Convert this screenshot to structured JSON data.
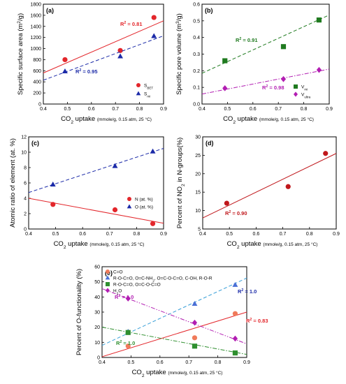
{
  "chart_data": [
    {
      "type": "scatter",
      "panel_label": "(a)",
      "xlabel": "CO2 uptake (mmole/g, 0.15 atm, 25 °C)",
      "ylabel": "Specific surface area (m2/g)",
      "xlim": [
        0.4,
        0.9
      ],
      "ylim": [
        0,
        1800
      ],
      "xticks": [
        "0.4",
        "0.5",
        "0.6",
        "0.7",
        "0.8",
        "0.9"
      ],
      "yticks": [
        "0",
        "200",
        "400",
        "600",
        "800",
        "1000",
        "1200",
        "1400",
        "1600",
        "1800"
      ],
      "legend_position": "bottom-right",
      "series": [
        {
          "name": "SBET",
          "marker": "circle",
          "color": "#e3262b",
          "x": [
            0.49,
            0.72,
            0.86
          ],
          "y": [
            800,
            965,
            1560
          ],
          "fit": {
            "x": [
              0.4,
              0.9
            ],
            "y": [
              560,
              1500
            ],
            "style": "solid"
          },
          "r2_label": "R2 = 0.81"
        },
        {
          "name": "Smi",
          "marker": "triangle",
          "color": "#1b2aa8",
          "x": [
            0.49,
            0.72,
            0.86
          ],
          "y": [
            590,
            860,
            1225
          ],
          "fit": {
            "x": [
              0.4,
              0.9
            ],
            "y": [
              430,
              1230
            ],
            "style": "dashed"
          },
          "r2_label": "R2 = 0.95"
        }
      ]
    },
    {
      "type": "scatter",
      "panel_label": "(b)",
      "xlabel": "CO2 uptake (mmole/g, 0.15 atm, 25 °C)",
      "ylabel": "Specific pore volume (m3/g)",
      "xlim": [
        0.4,
        0.9
      ],
      "ylim": [
        0.0,
        0.6
      ],
      "xticks": [
        "0.4",
        "0.5",
        "0.6",
        "0.7",
        "0.8",
        "0.9"
      ],
      "yticks": [
        "0.0",
        "0.1",
        "0.2",
        "0.3",
        "0.4",
        "0.5",
        "0.6"
      ],
      "legend_position": "bottom-right",
      "series": [
        {
          "name": "Vmi",
          "marker": "square",
          "color": "#1f7a1f",
          "x": [
            0.49,
            0.72,
            0.86
          ],
          "y": [
            0.26,
            0.345,
            0.505
          ],
          "fit": {
            "x": [
              0.4,
              0.9
            ],
            "y": [
              0.185,
              0.535
            ],
            "style": "dashed"
          },
          "r2_label": "R2 = 0.91"
        },
        {
          "name": "Vultra",
          "marker": "diamond",
          "color": "#b21db2",
          "x": [
            0.49,
            0.72,
            0.86
          ],
          "y": [
            0.095,
            0.15,
            0.205
          ],
          "fit": {
            "x": [
              0.4,
              0.9
            ],
            "y": [
              0.06,
              0.21
            ],
            "style": "dashdot"
          },
          "r2_label": "R2 = 0.98"
        }
      ]
    },
    {
      "type": "scatter",
      "panel_label": "(c)",
      "xlabel": "CO2 uptake (mmole/g, 0.15 atm, 25 °C)",
      "ylabel": "Atomic ratio of element (at. %)",
      "xlim": [
        0.4,
        0.9
      ],
      "ylim": [
        0,
        12
      ],
      "xticks": [
        "0.4",
        "0.5",
        "0.6",
        "0.7",
        "0.8",
        "0.9"
      ],
      "yticks": [
        "0",
        "2",
        "4",
        "6",
        "8",
        "10",
        "12"
      ],
      "legend_position": "right",
      "series": [
        {
          "name": "N (at. %)",
          "marker": "circle",
          "color": "#e3262b",
          "x": [
            0.49,
            0.72,
            0.86
          ],
          "y": [
            3.2,
            2.5,
            0.7
          ],
          "fit": {
            "x": [
              0.4,
              0.9
            ],
            "y": [
              4.0,
              0.75
            ],
            "style": "solid"
          }
        },
        {
          "name": "O (at. %)",
          "marker": "triangle",
          "color": "#1b2aa8",
          "x": [
            0.49,
            0.72,
            0.86
          ],
          "y": [
            5.8,
            8.2,
            10.1
          ],
          "fit": {
            "x": [
              0.4,
              0.9
            ],
            "y": [
              4.75,
              10.5
            ],
            "style": "dashed"
          }
        }
      ]
    },
    {
      "type": "scatter",
      "panel_label": "(d)",
      "xlabel": "CO2 uptake (mmole/g, 0.15 atm, 25 °C)",
      "ylabel": "Percent of NO2 in N-groups(%)",
      "xlim": [
        0.4,
        0.9
      ],
      "ylim": [
        5,
        30
      ],
      "xticks": [
        "0.4",
        "0.5",
        "0.6",
        "0.7",
        "0.8",
        "0.9"
      ],
      "yticks": [
        "5",
        "10",
        "15",
        "20",
        "25",
        "30"
      ],
      "series": [
        {
          "name": "",
          "marker": "circle",
          "color": "#c0181c",
          "x": [
            0.49,
            0.72,
            0.86
          ],
          "y": [
            12.0,
            16.5,
            25.5
          ],
          "fit": {
            "x": [
              0.4,
              0.9
            ],
            "y": [
              8.0,
              25.5
            ],
            "style": "solid"
          },
          "r2_label": "R2 = 0.90"
        }
      ]
    },
    {
      "type": "scatter",
      "panel_label": "(e)",
      "xlabel": "CO2 uptake (mmole/g, 0.15 atm, 25 °C)",
      "ylabel": "Percent of O-functionality (%)",
      "xlim": [
        0.4,
        0.9
      ],
      "ylim": [
        0,
        60
      ],
      "xticks": [
        "0.4",
        "0.5",
        "0.6",
        "0.7",
        "0.8",
        "0.9"
      ],
      "yticks": [
        "0",
        "10",
        "20",
        "30",
        "40",
        "50",
        "60"
      ],
      "legend_position": "top-left",
      "series": [
        {
          "name": "C=O",
          "marker": "circle",
          "color": "#f07a5a",
          "x": [
            0.49,
            0.72,
            0.86
          ],
          "y": [
            7.5,
            13.0,
            29.0
          ],
          "fit": {
            "x": [
              0.4,
              0.9
            ],
            "y": [
              0.5,
              30.0
            ],
            "style": "solid",
            "color": "#e3262b"
          },
          "r2_label": "R2 = 0.83",
          "r2_color": "#e3262b"
        },
        {
          "name": "R-O-C=O, O=C-NH2, O=C-O-C=O, C-OH, R-O-R",
          "marker": "triangle",
          "color": "#4a6fd6",
          "x": [
            0.49,
            0.72,
            0.86
          ],
          "y": [
            17.0,
            35.5,
            48.0
          ],
          "fit": {
            "x": [
              0.4,
              0.9
            ],
            "y": [
              8.0,
              52.5
            ],
            "style": "dashed",
            "color": "#3aa0d8"
          },
          "r2_label": "R2 = 1.0",
          "r2_color": "#1b2aa8"
        },
        {
          "name": "R-O-C=O, O=C-O-C=O",
          "marker": "square",
          "color": "#2f8f2f",
          "x": [
            0.49,
            0.72,
            0.86
          ],
          "y": [
            16.5,
            7.5,
            3.0
          ],
          "fit": {
            "x": [
              0.4,
              0.9
            ],
            "y": [
              20.0,
              2.0
            ],
            "style": "dashdot",
            "color": "#2f8f2f"
          },
          "r2_label": "R2 = 1.0",
          "r2_color": "#2f8f2f"
        },
        {
          "name": "H2O",
          "marker": "diamond",
          "color": "#b21db2",
          "x": [
            0.49,
            0.72,
            0.86
          ],
          "y": [
            39.0,
            23.0,
            12.5
          ],
          "fit": {
            "x": [
              0.4,
              0.9
            ],
            "y": [
              45.5,
              9.0
            ],
            "style": "dashdotdot",
            "color": "#b21db2"
          },
          "r2_label": "R2 = 1.0",
          "r2_color": "#b21db2"
        }
      ]
    }
  ]
}
